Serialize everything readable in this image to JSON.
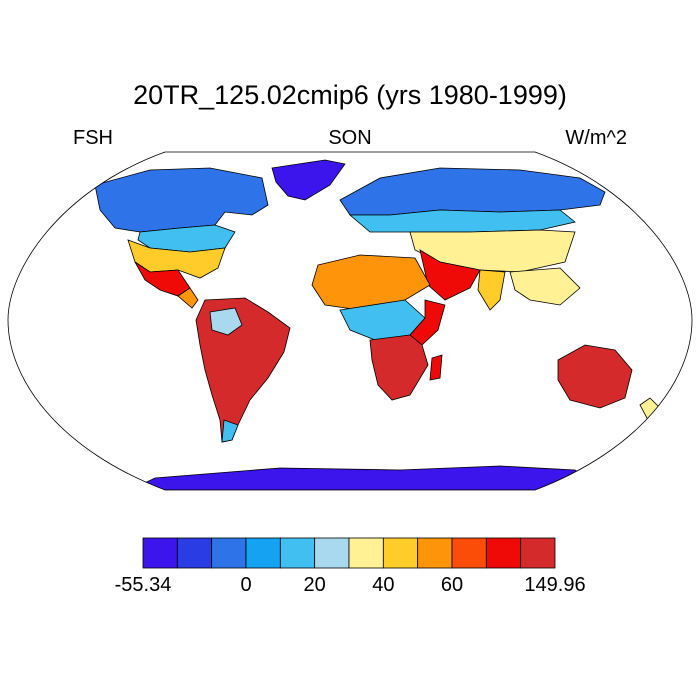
{
  "title": "20TR_125.02cmip6 (yrs 1980-1999)",
  "left_label": "FSH",
  "center_label": "SON",
  "right_label": "W/m^2",
  "colorbar": {
    "colors": [
      "#3c14ec",
      "#2a3de4",
      "#2f73e8",
      "#15a2f3",
      "#41bff0",
      "#a9d9ef",
      "#fff194",
      "#ffcc29",
      "#fe9409",
      "#fb4d07",
      "#ef0a08",
      "#d42a2b"
    ],
    "tick_labels": [
      "-55.34",
      "0",
      "20",
      "40",
      "60",
      "149.96"
    ],
    "tick_boundaries": [
      0,
      3,
      5,
      7,
      9,
      12
    ]
  },
  "map_regions": [
    {
      "name": "Greenland",
      "color": "#3c14ec"
    },
    {
      "name": "Antarctica",
      "color": "#3c14ec"
    },
    {
      "name": "Northern high latitudes",
      "color": "#2f73e8"
    },
    {
      "name": "North America mid latitudes",
      "color": "#41bff0"
    },
    {
      "name": "United States south",
      "color": "#ffcc29"
    },
    {
      "name": "Sahara",
      "color": "#fe9409"
    },
    {
      "name": "Southern Africa",
      "color": "#d42a2b"
    },
    {
      "name": "South America",
      "color": "#d42a2b"
    },
    {
      "name": "Australia",
      "color": "#d42a2b"
    },
    {
      "name": "Central Asia",
      "color": "#fff194"
    },
    {
      "name": "Amazon",
      "color": "#a9d9ef"
    },
    {
      "name": "Southeast Asia",
      "color": "#fff194"
    }
  ]
}
